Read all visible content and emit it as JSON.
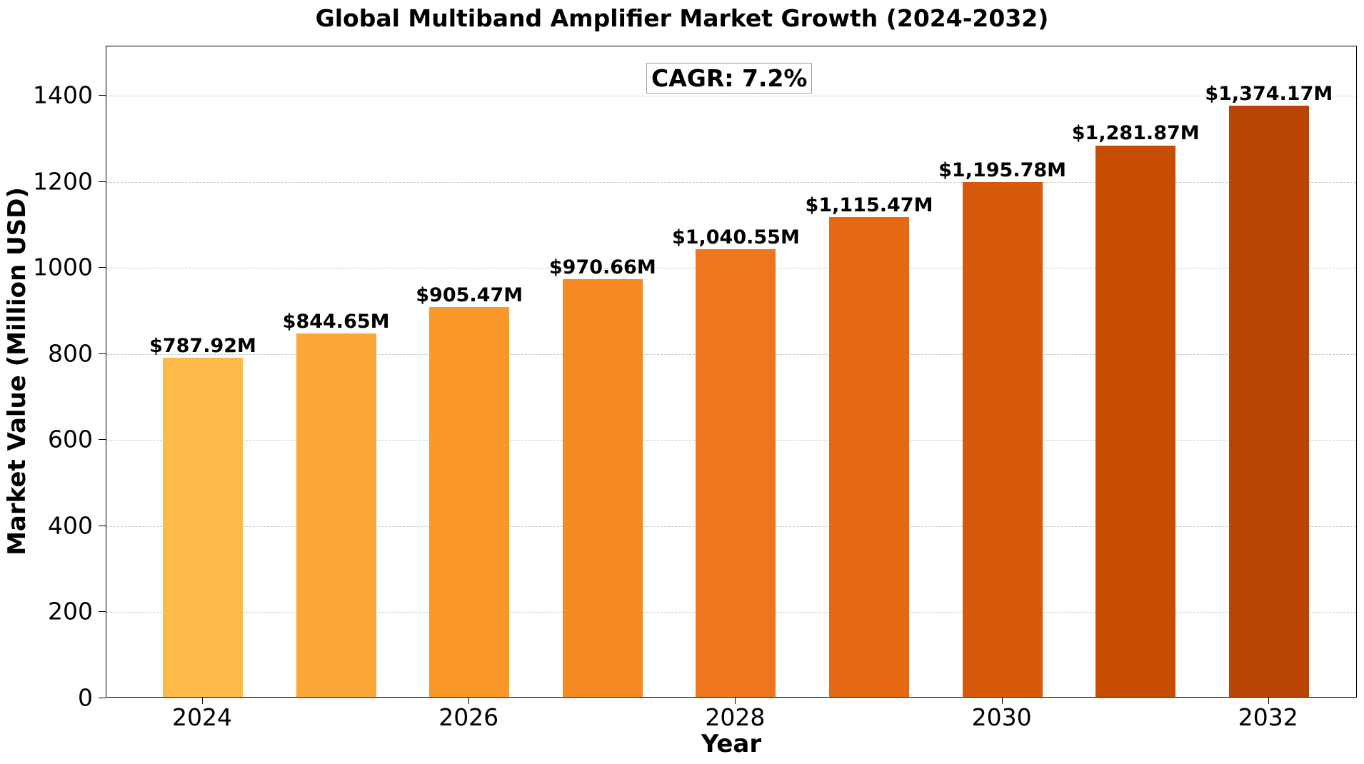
{
  "chart_data": {
    "type": "bar",
    "title": "Global Multiband Amplifier Market Growth (2024-2032)",
    "xlabel": "Year",
    "ylabel": "Market Value (Million USD)",
    "categories": [
      "2024",
      "2025",
      "2026",
      "2027",
      "2028",
      "2029",
      "2030",
      "2031",
      "2032"
    ],
    "values": [
      787.92,
      844.65,
      905.47,
      970.66,
      1040.55,
      1115.47,
      1195.78,
      1281.87,
      1374.17
    ],
    "data_labels": [
      "$787.92M",
      "$844.65M",
      "$905.47M",
      "$970.66M",
      "$1,040.55M",
      "$1,115.47M",
      "$1,195.78M",
      "$1,281.87M",
      "$1,374.17M"
    ],
    "bar_colors": [
      "#fdb949",
      "#fca838",
      "#fa982b",
      "#f58a22",
      "#ee771d",
      "#e56815",
      "#d9590b",
      "#c94c03",
      "#b84504"
    ],
    "ylim": [
      0,
      1515
    ],
    "yticks": [
      0,
      200,
      400,
      600,
      800,
      1000,
      1200,
      1400
    ],
    "xticks": [
      "2024",
      "2026",
      "2028",
      "2030",
      "2032"
    ],
    "grid": {
      "axis": "y",
      "style": "dashed"
    },
    "annotation": "CAGR: 7.2%",
    "legend": null
  }
}
